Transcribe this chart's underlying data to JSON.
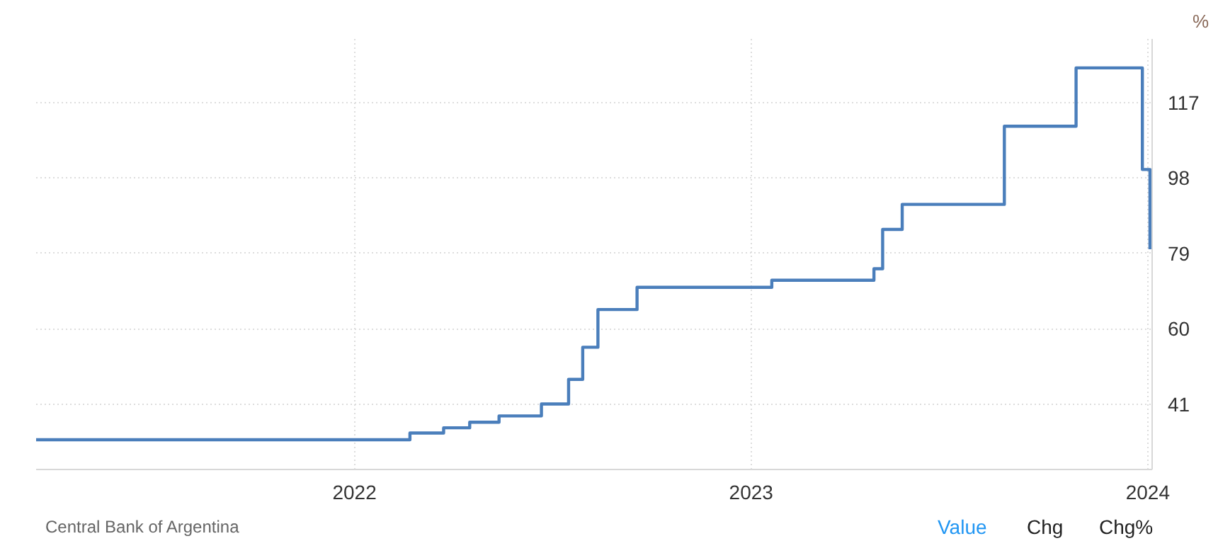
{
  "chart_data": {
    "type": "step",
    "ylabel": "%",
    "x": [
      "2021-03-14",
      "2022-02-21",
      "2022-03-24",
      "2022-04-17",
      "2022-05-14",
      "2022-06-22",
      "2022-07-17",
      "2022-07-30",
      "2022-08-13",
      "2022-09-18",
      "2023-01-20",
      "2023-04-24",
      "2023-05-02",
      "2023-05-20",
      "2023-08-22",
      "2023-10-27",
      "2023-12-27",
      "2024-01-03"
    ],
    "series": [
      {
        "color": "#4a7ebb",
        "values": [
          32,
          33.7,
          35,
          36.4,
          38,
          41,
          47.2,
          55.3,
          64.8,
          70.4,
          72.2,
          75.1,
          85,
          91.3,
          111,
          125.7,
          100.1,
          80
        ]
      }
    ],
    "xlim": [
      "2021-03-14",
      "2024-01-05"
    ],
    "xticks": [
      {
        "value": "2022-01-01",
        "label": "2022"
      },
      {
        "value": "2023-01-01",
        "label": "2023"
      },
      {
        "value": "2024-01-01",
        "label": "2024"
      }
    ],
    "ylim": [
      24.5,
      133
    ],
    "yticks": [
      41,
      60,
      79,
      98,
      117
    ],
    "grid": true,
    "line_style": "solid",
    "annotations": [
      "Central Bank of Argentina",
      "Value",
      "Chg",
      "Chg%"
    ]
  }
}
